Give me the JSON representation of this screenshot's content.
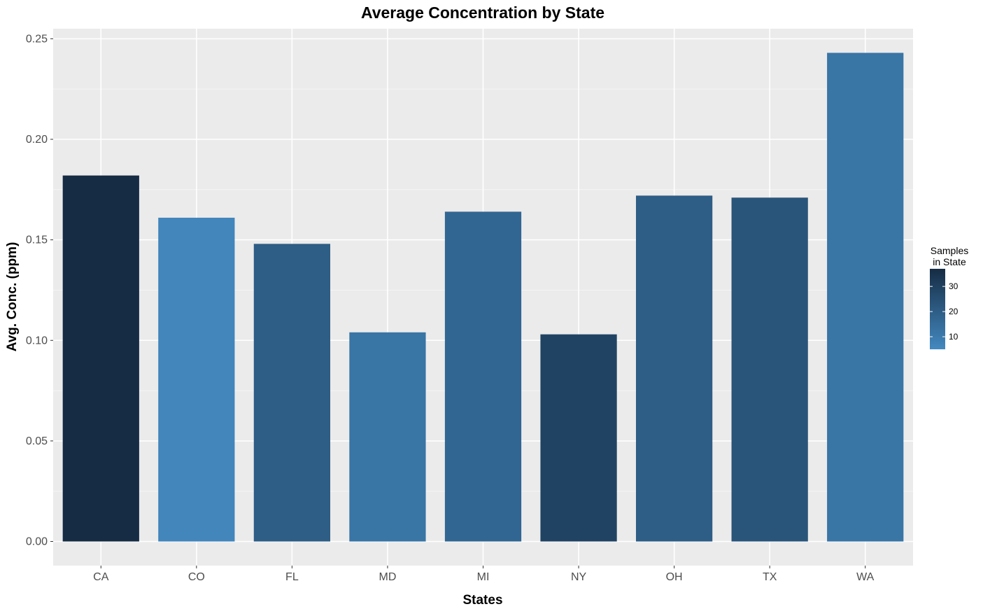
{
  "chart_data": {
    "type": "bar",
    "title": "Average Concentration by State",
    "xlabel": "States",
    "ylabel": "Avg. Conc. (ppm)",
    "categories": [
      "CA",
      "CO",
      "FL",
      "MD",
      "MI",
      "NY",
      "OH",
      "TX",
      "WA"
    ],
    "values": [
      0.182,
      0.161,
      0.148,
      0.104,
      0.164,
      0.103,
      0.172,
      0.171,
      0.243
    ],
    "samples": [
      37,
      6,
      20,
      12,
      17,
      29,
      20,
      23,
      12
    ],
    "ylim": [
      -0.012,
      0.255
    ],
    "yticks": [
      0.0,
      0.05,
      0.1,
      0.15,
      0.2,
      0.25
    ],
    "ytick_labels": [
      "0.00",
      "0.05",
      "0.10",
      "0.15",
      "0.20",
      "0.25"
    ],
    "grid": true,
    "legend": {
      "title_line1": "Samples",
      "title_line2": "in State",
      "placement": "right",
      "range": [
        5,
        37
      ],
      "ticks": [
        10,
        20,
        30
      ],
      "tick_labels": [
        "10",
        "20",
        "30"
      ],
      "color_low": "#4389c0",
      "color_high": "#162c44"
    },
    "colors": {
      "panel": "#ebebeb",
      "grid_major": "#ffffff",
      "grid_minor": "#f5f5f5",
      "tick_text": "#4d4d4d"
    }
  }
}
